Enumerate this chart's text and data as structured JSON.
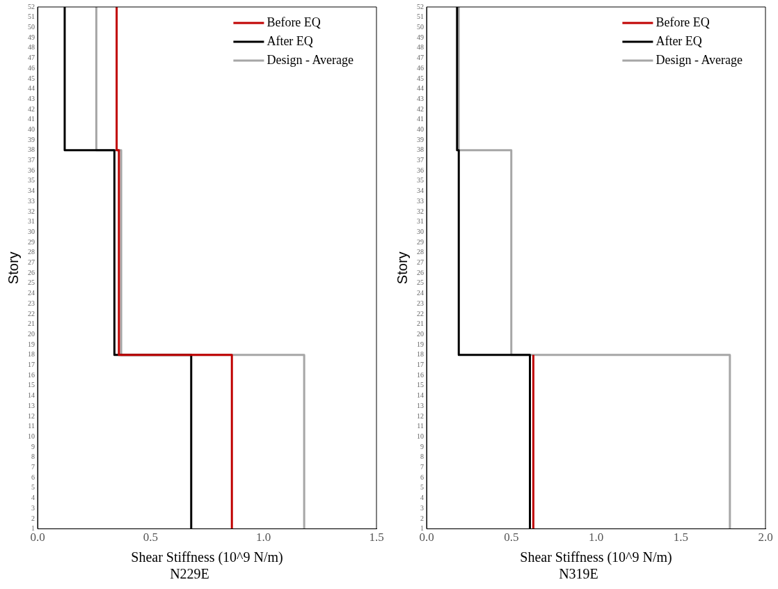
{
  "chart_data": [
    {
      "type": "line",
      "title": "N229E",
      "xlabel": "Shear Stiffness (10^9 N/m)",
      "ylabel": "Story",
      "xlim": [
        0,
        1.5
      ],
      "xticks": [
        {
          "value": 0,
          "label": "0.0"
        },
        {
          "value": 0.5,
          "label": "0.5"
        },
        {
          "value": 1,
          "label": "1.0"
        },
        {
          "value": 1.5,
          "label": "1.5"
        }
      ],
      "ylim": [
        1,
        52
      ],
      "yticks": [
        1,
        2,
        3,
        4,
        5,
        6,
        7,
        8,
        9,
        10,
        11,
        12,
        13,
        14,
        15,
        16,
        17,
        18,
        19,
        20,
        21,
        22,
        23,
        24,
        25,
        26,
        27,
        28,
        29,
        30,
        31,
        32,
        33,
        34,
        35,
        36,
        37,
        38,
        39,
        40,
        41,
        42,
        43,
        44,
        45,
        46,
        47,
        48,
        49,
        50,
        51,
        52
      ],
      "grid": false,
      "legend": "top right",
      "marker": "none",
      "line_style": "solid",
      "series": [
        {
          "name": "Before EQ",
          "color": "#c00000",
          "x": [
            0.86,
            0.86,
            0.36,
            0.36,
            0.35,
            0.35
          ],
          "values": [
            1,
            18,
            18,
            38,
            38,
            52
          ]
        },
        {
          "name": "After EQ",
          "color": "#000000",
          "x": [
            0.68,
            0.68,
            0.34,
            0.34,
            0.12,
            0.12
          ],
          "values": [
            1,
            18,
            18,
            38,
            38,
            52
          ]
        },
        {
          "name": "Design - Average",
          "color": "#a6a6a6",
          "x": [
            1.18,
            1.18,
            0.37,
            0.37,
            0.26,
            0.26
          ],
          "values": [
            1,
            18,
            18,
            38,
            38,
            52
          ]
        }
      ]
    },
    {
      "type": "line",
      "title": "N319E",
      "xlabel": "Shear Stiffness (10^9 N/m)",
      "ylabel": "Story",
      "xlim": [
        0,
        2
      ],
      "xticks": [
        {
          "value": 0,
          "label": "0.0"
        },
        {
          "value": 0.5,
          "label": "0.5"
        },
        {
          "value": 1,
          "label": "1.0"
        },
        {
          "value": 1.5,
          "label": "1.5"
        },
        {
          "value": 2,
          "label": "2.0"
        }
      ],
      "ylim": [
        1,
        52
      ],
      "yticks": [
        1,
        2,
        3,
        4,
        5,
        6,
        7,
        8,
        9,
        10,
        11,
        12,
        13,
        14,
        15,
        16,
        17,
        18,
        19,
        20,
        21,
        22,
        23,
        24,
        25,
        26,
        27,
        28,
        29,
        30,
        31,
        32,
        33,
        34,
        35,
        36,
        37,
        38,
        39,
        40,
        41,
        42,
        43,
        44,
        45,
        46,
        47,
        48,
        49,
        50,
        51,
        52
      ],
      "grid": false,
      "legend": "top right",
      "marker": "none",
      "line_style": "solid",
      "series": [
        {
          "name": "Before EQ",
          "color": "#c00000",
          "x": [
            0.63,
            0.63
          ],
          "values": [
            1,
            18
          ]
        },
        {
          "name": "After EQ",
          "color": "#000000",
          "x": [
            0.61,
            0.61,
            0.19,
            0.19,
            0.18,
            0.18
          ],
          "values": [
            1,
            18,
            18,
            38,
            38,
            52
          ]
        },
        {
          "name": "Design - Average",
          "color": "#a6a6a6",
          "x": [
            1.79,
            1.79,
            0.5,
            0.5,
            0.19,
            0.19
          ],
          "values": [
            1,
            18,
            18,
            38,
            38,
            52
          ]
        }
      ]
    }
  ]
}
